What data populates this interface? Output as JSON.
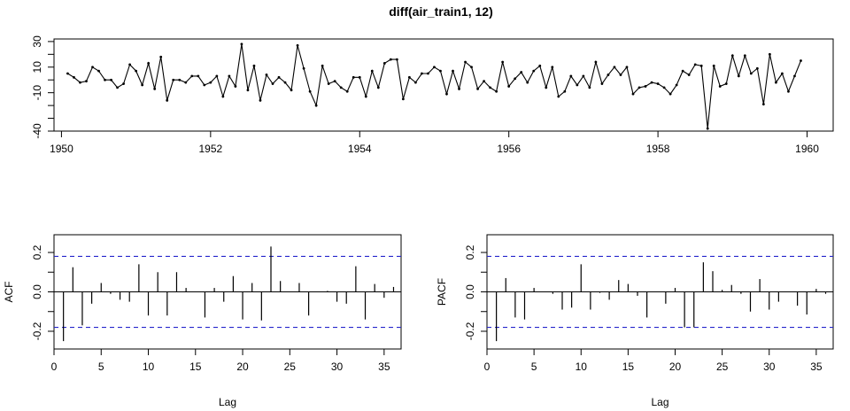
{
  "title": "diff(air_train1, 12)",
  "chart_data": [
    {
      "type": "line",
      "title": "diff(air_train1, 12)",
      "xlabel": "",
      "ylabel": "",
      "xlim": [
        1949.9,
        1960.35
      ],
      "ylim": [
        -40,
        32
      ],
      "x_ticks": [
        1950,
        1952,
        1954,
        1956,
        1958,
        1960
      ],
      "x_tick_labels": [
        "1950",
        "1952",
        "1954",
        "1956",
        "1958",
        "1960"
      ],
      "y_ticks": [
        30,
        10,
        -10,
        -40
      ],
      "y_tick_labels": [
        "30",
        "10",
        "-10",
        "-40"
      ],
      "x_start": 1950.0833,
      "x_step": 0.08333,
      "values": [
        5,
        2,
        -2,
        -1,
        10,
        7,
        0,
        0,
        -6,
        -3,
        12,
        7,
        -4,
        13,
        -7,
        18,
        -16,
        0,
        0,
        -2,
        3,
        3,
        -4,
        -2,
        3,
        -13,
        3,
        -5,
        28,
        -8,
        11,
        -16,
        4,
        -3,
        2,
        -2,
        -8,
        27,
        9,
        -9,
        -20,
        11,
        -3,
        -1,
        -6,
        -9,
        2,
        2,
        -13,
        7,
        -6,
        13,
        16,
        16,
        -15,
        2,
        -2,
        5,
        5,
        10,
        7,
        -11,
        7,
        -7,
        14,
        10,
        -7,
        -1,
        -6,
        -9,
        14,
        -5,
        1,
        6,
        -2,
        7,
        11,
        -6,
        10,
        -13,
        -9,
        3,
        -4,
        3,
        -6,
        14,
        -3,
        4,
        10,
        4,
        10,
        -11,
        -6,
        -5,
        -2,
        -3,
        -6,
        -11,
        -4,
        7,
        4,
        12,
        11,
        -38,
        11,
        -5,
        -3,
        19,
        3,
        19,
        5,
        9,
        -19,
        20,
        -2,
        5,
        -9,
        3,
        15
      ]
    },
    {
      "type": "bar",
      "title": "",
      "xlabel": "Lag",
      "ylabel": "ACF",
      "xlim": [
        0,
        36.8
      ],
      "ylim": [
        -0.29,
        0.29
      ],
      "x_ticks": [
        0,
        5,
        10,
        15,
        20,
        25,
        30,
        35
      ],
      "x_tick_labels": [
        "0",
        "5",
        "10",
        "15",
        "20",
        "25",
        "30",
        "35"
      ],
      "y_ticks": [
        -0.2,
        0.0,
        0.2
      ],
      "y_tick_labels": [
        "-0.2",
        "0.0",
        "0.2"
      ],
      "confidence_bound": 0.18,
      "lags": [
        1,
        2,
        3,
        4,
        5,
        6,
        7,
        8,
        9,
        10,
        11,
        12,
        13,
        14,
        15,
        16,
        17,
        18,
        19,
        20,
        21,
        22,
        23,
        24,
        25,
        26,
        27,
        28,
        29,
        30,
        31,
        32,
        33,
        34,
        35,
        36
      ],
      "values": [
        -0.25,
        0.125,
        -0.17,
        -0.06,
        0.045,
        -0.01,
        -0.04,
        -0.05,
        0.14,
        -0.12,
        0.1,
        -0.12,
        0.1,
        0.02,
        0.0,
        -0.13,
        0.02,
        -0.05,
        0.08,
        -0.14,
        0.045,
        -0.145,
        0.23,
        0.055,
        0.0,
        0.045,
        -0.12,
        0.0,
        0.005,
        -0.05,
        -0.06,
        0.13,
        -0.14,
        0.04,
        -0.03,
        0.025
      ]
    },
    {
      "type": "bar",
      "title": "",
      "xlabel": "Lag",
      "ylabel": "PACF",
      "xlim": [
        0,
        36.8
      ],
      "ylim": [
        -0.29,
        0.29
      ],
      "x_ticks": [
        0,
        5,
        10,
        15,
        20,
        25,
        30,
        35
      ],
      "x_tick_labels": [
        "0",
        "5",
        "10",
        "15",
        "20",
        "25",
        "30",
        "35"
      ],
      "y_ticks": [
        -0.2,
        0.0,
        0.2
      ],
      "y_tick_labels": [
        "-0.2",
        "0.0",
        "0.2"
      ],
      "confidence_bound": 0.18,
      "lags": [
        1,
        2,
        3,
        4,
        5,
        6,
        7,
        8,
        9,
        10,
        11,
        12,
        13,
        14,
        15,
        16,
        17,
        18,
        19,
        20,
        21,
        22,
        23,
        24,
        25,
        26,
        27,
        28,
        29,
        30,
        31,
        32,
        33,
        34,
        35,
        36
      ],
      "values": [
        -0.25,
        0.07,
        -0.13,
        -0.14,
        0.02,
        0.0,
        -0.01,
        -0.09,
        -0.08,
        0.14,
        -0.09,
        -0.005,
        -0.04,
        0.06,
        0.04,
        -0.02,
        -0.13,
        0.0,
        -0.06,
        0.02,
        -0.18,
        -0.18,
        0.15,
        0.105,
        0.01,
        0.035,
        -0.01,
        -0.1,
        0.065,
        -0.09,
        -0.05,
        0.0,
        -0.07,
        -0.115,
        0.015,
        -0.01
      ]
    }
  ]
}
